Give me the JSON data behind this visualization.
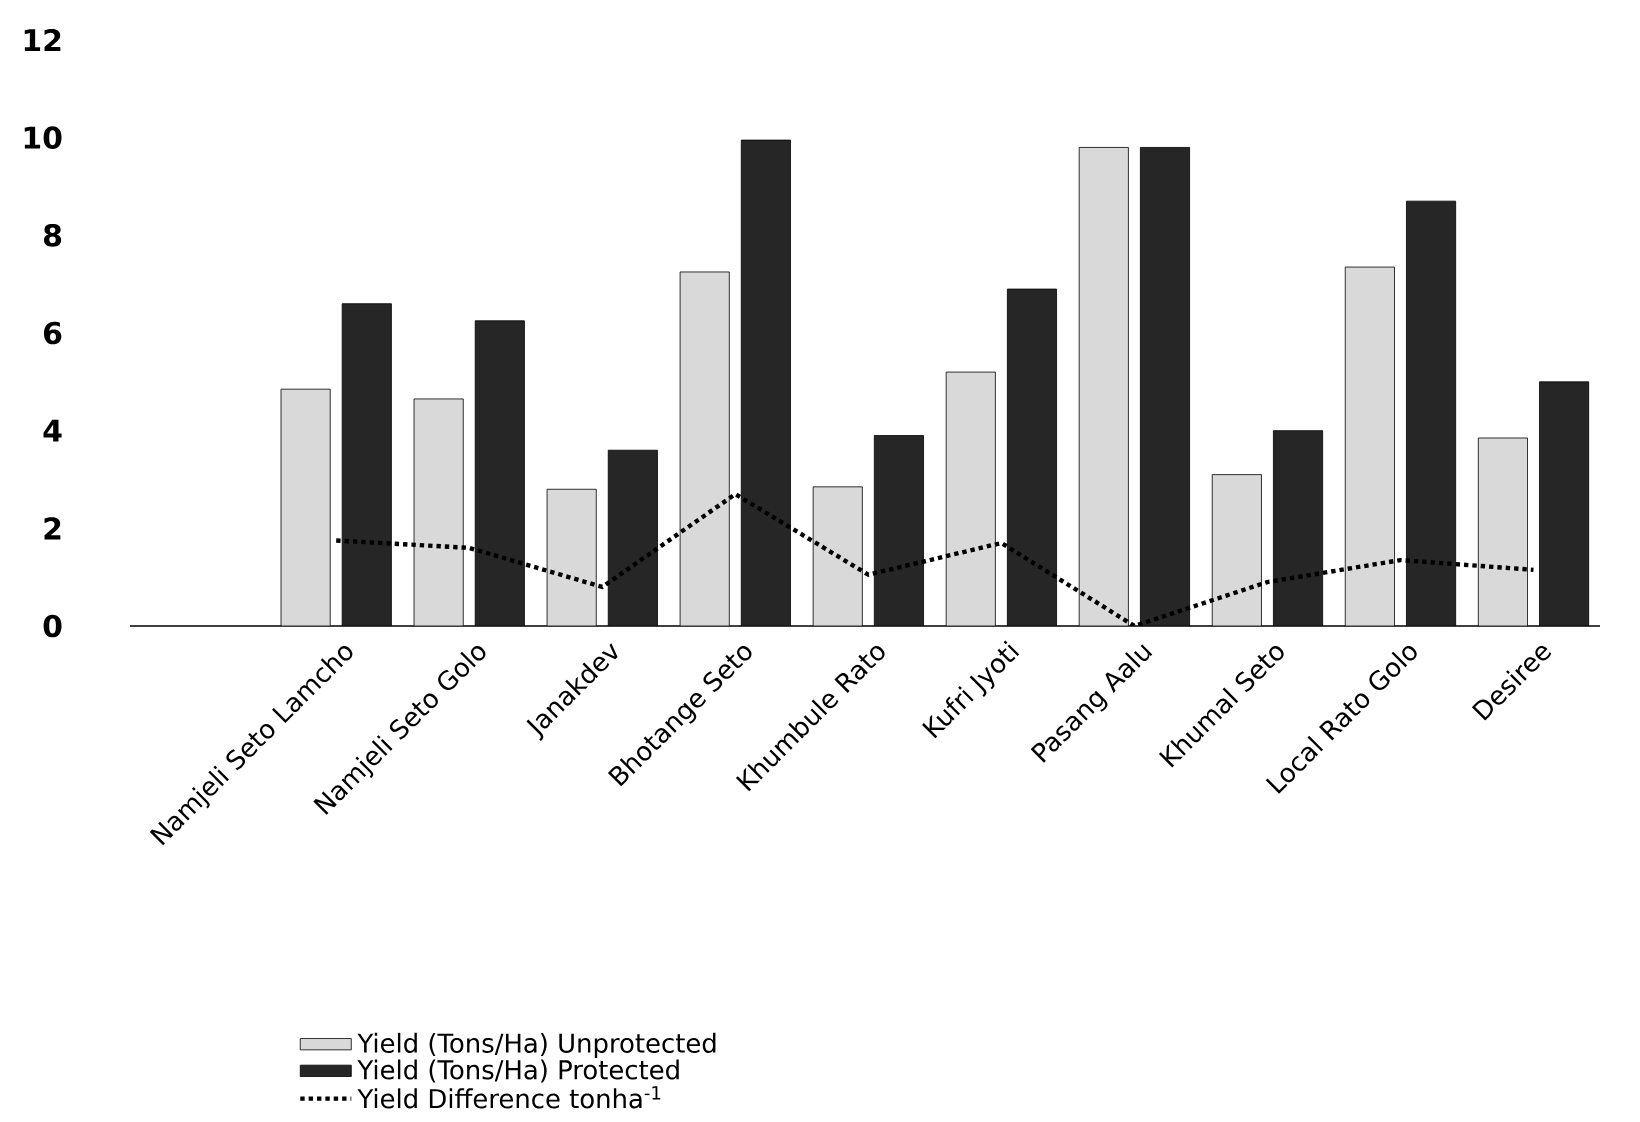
{
  "chart_data": {
    "type": "bar",
    "categories": [
      "Namjeli Seto Lamcho",
      "Namjeli Seto Golo",
      "Janakdev",
      "Bhotange Seto",
      "Khumbule Rato",
      "Kufri Jyoti",
      "Pasang Aalu",
      "Khumal Seto",
      "Local Rato Golo",
      "Desiree"
    ],
    "series": [
      {
        "name": "Yield (Tons/Ha) Unprotected",
        "color": "#d9d9d9",
        "values": [
          4.85,
          4.65,
          2.8,
          7.25,
          2.85,
          5.2,
          9.8,
          3.1,
          7.35,
          3.85
        ]
      },
      {
        "name": "Yield (Tons/Ha) Protected",
        "color": "#262626",
        "values": [
          6.6,
          6.25,
          3.6,
          9.95,
          3.9,
          6.9,
          9.8,
          4.0,
          8.7,
          5.0
        ]
      },
      {
        "name": "Yield Difference tonha$^{-1}$",
        "color": "#000000",
        "type": "line",
        "line_style": "dotted",
        "values": [
          1.75,
          1.6,
          0.8,
          2.7,
          1.05,
          1.7,
          0.0,
          0.9,
          1.35,
          1.15
        ]
      }
    ],
    "ylim": [
      0,
      12
    ],
    "yticks": [
      0,
      2,
      4,
      6,
      8,
      10,
      12
    ],
    "grid": false,
    "legend": "bottom"
  }
}
